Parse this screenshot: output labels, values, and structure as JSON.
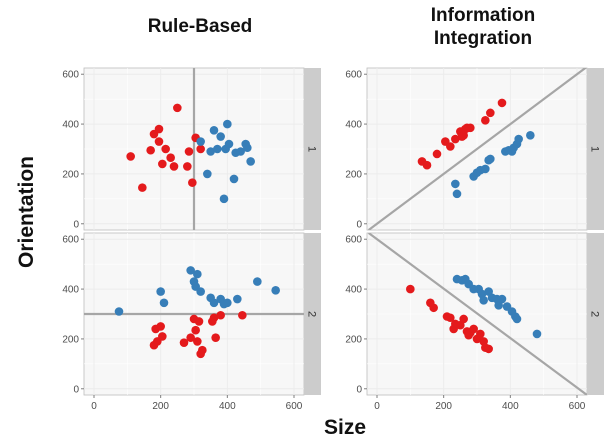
{
  "chart_data": {
    "type": "scatter",
    "title": "",
    "xlabel": "Size",
    "ylabel": "Orientation",
    "columns": [
      "Rule-Based",
      "Information Integration"
    ],
    "column_title_lines": [
      [
        "Rule-Based"
      ],
      [
        "Information",
        "Integration"
      ]
    ],
    "rows": [
      "1",
      "2"
    ],
    "xlim": [
      -30,
      630
    ],
    "ylim": [
      -25,
      625
    ],
    "xticks": [
      0,
      200,
      400,
      600
    ],
    "yticks": [
      0,
      200,
      400,
      600
    ],
    "grid": true,
    "legend": "none",
    "colors": {
      "A": "#e41a1c",
      "B": "#377eb8",
      "boundary": "#a6a6a6",
      "panel_bg": "#f7f7f7",
      "strip_bg": "#cccccc"
    },
    "panels": [
      {
        "column": "Rule-Based",
        "row": "1",
        "boundaries": [
          {
            "kind": "vertical",
            "x": 300
          }
        ],
        "series": [
          {
            "category": "A",
            "points": [
              [
                110,
                270
              ],
              [
                145,
                145
              ],
              [
                170,
                295
              ],
              [
                180,
                360
              ],
              [
                195,
                380
              ],
              [
                195,
                330
              ],
              [
                205,
                240
              ],
              [
                215,
                300
              ],
              [
                230,
                265
              ],
              [
                240,
                230
              ],
              [
                250,
                465
              ],
              [
                280,
                230
              ],
              [
                285,
                290
              ],
              [
                295,
                165
              ],
              [
                305,
                345
              ],
              [
                320,
                300
              ]
            ]
          },
          {
            "category": "B",
            "points": [
              [
                320,
                330
              ],
              [
                340,
                200
              ],
              [
                350,
                290
              ],
              [
                360,
                375
              ],
              [
                370,
                300
              ],
              [
                380,
                350
              ],
              [
                390,
                100
              ],
              [
                395,
                300
              ],
              [
                400,
                400
              ],
              [
                405,
                320
              ],
              [
                420,
                180
              ],
              [
                425,
                285
              ],
              [
                440,
                290
              ],
              [
                455,
                320
              ],
              [
                460,
                305
              ],
              [
                470,
                250
              ]
            ]
          }
        ]
      },
      {
        "column": "Information Integration",
        "row": "1",
        "boundaries": [
          {
            "kind": "line",
            "from": [
              -25,
              -25
            ],
            "to": [
              630,
              630
            ]
          }
        ],
        "series": [
          {
            "category": "A",
            "points": [
              [
                135,
                250
              ],
              [
                150,
                235
              ],
              [
                180,
                280
              ],
              [
                205,
                330
              ],
              [
                220,
                310
              ],
              [
                235,
                340
              ],
              [
                250,
                370
              ],
              [
                255,
                350
              ],
              [
                260,
                355
              ],
              [
                265,
                380
              ],
              [
                270,
                385
              ],
              [
                280,
                385
              ],
              [
                325,
                415
              ],
              [
                340,
                445
              ],
              [
                375,
                485
              ]
            ]
          },
          {
            "category": "B",
            "points": [
              [
                235,
                160
              ],
              [
                240,
                120
              ],
              [
                290,
                190
              ],
              [
                300,
                205
              ],
              [
                310,
                215
              ],
              [
                325,
                220
              ],
              [
                335,
                255
              ],
              [
                340,
                260
              ],
              [
                385,
                290
              ],
              [
                395,
                295
              ],
              [
                405,
                290
              ],
              [
                410,
                305
              ],
              [
                420,
                320
              ],
              [
                425,
                340
              ],
              [
                460,
                355
              ]
            ]
          }
        ]
      },
      {
        "column": "Rule-Based",
        "row": "2",
        "boundaries": [
          {
            "kind": "horizontal",
            "y": 300
          }
        ],
        "series": [
          {
            "category": "A",
            "points": [
              [
                180,
                175
              ],
              [
                185,
                240
              ],
              [
                190,
                190
              ],
              [
                200,
                250
              ],
              [
                205,
                210
              ],
              [
                270,
                185
              ],
              [
                290,
                205
              ],
              [
                300,
                280
              ],
              [
                305,
                235
              ],
              [
                310,
                190
              ],
              [
                315,
                270
              ],
              [
                320,
                140
              ],
              [
                325,
                155
              ],
              [
                355,
                270
              ],
              [
                360,
                285
              ],
              [
                365,
                205
              ],
              [
                380,
                295
              ],
              [
                445,
                295
              ]
            ]
          },
          {
            "category": "B",
            "points": [
              [
                75,
                310
              ],
              [
                200,
                390
              ],
              [
                210,
                345
              ],
              [
                290,
                475
              ],
              [
                300,
                430
              ],
              [
                305,
                410
              ],
              [
                310,
                460
              ],
              [
                320,
                390
              ],
              [
                350,
                365
              ],
              [
                360,
                345
              ],
              [
                380,
                360
              ],
              [
                390,
                340
              ],
              [
                400,
                345
              ],
              [
                430,
                360
              ],
              [
                490,
                430
              ],
              [
                545,
                395
              ]
            ]
          }
        ]
      },
      {
        "column": "Information Integration",
        "row": "2",
        "boundaries": [
          {
            "kind": "line",
            "from": [
              -25,
              625
            ],
            "to": [
              630,
              -25
            ]
          }
        ],
        "series": [
          {
            "category": "A",
            "points": [
              [
                100,
                400
              ],
              [
                160,
                345
              ],
              [
                170,
                325
              ],
              [
                210,
                290
              ],
              [
                220,
                285
              ],
              [
                230,
                240
              ],
              [
                235,
                260
              ],
              [
                250,
                255
              ],
              [
                260,
                280
              ],
              [
                270,
                230
              ],
              [
                275,
                215
              ],
              [
                280,
                225
              ],
              [
                290,
                240
              ],
              [
                300,
                200
              ],
              [
                310,
                220
              ],
              [
                320,
                190
              ],
              [
                325,
                165
              ],
              [
                335,
                160
              ]
            ]
          },
          {
            "category": "B",
            "points": [
              [
                240,
                440
              ],
              [
                255,
                435
              ],
              [
                265,
                440
              ],
              [
                275,
                420
              ],
              [
                290,
                400
              ],
              [
                305,
                400
              ],
              [
                315,
                380
              ],
              [
                320,
                355
              ],
              [
                335,
                390
              ],
              [
                345,
                365
              ],
              [
                360,
                360
              ],
              [
                365,
                335
              ],
              [
                375,
                360
              ],
              [
                390,
                330
              ],
              [
                405,
                310
              ],
              [
                415,
                290
              ],
              [
                420,
                280
              ],
              [
                480,
                220
              ]
            ]
          }
        ]
      }
    ]
  }
}
